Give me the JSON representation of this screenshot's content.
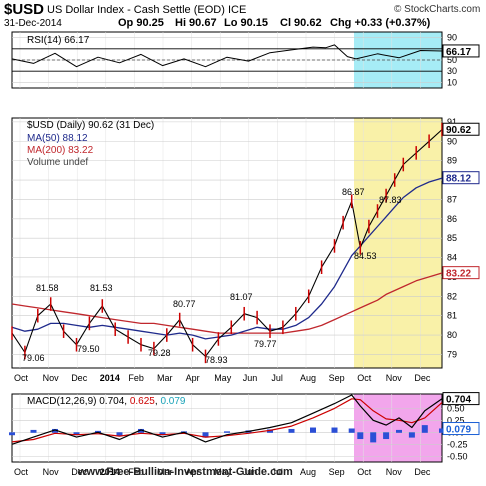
{
  "header": {
    "symbol": "$USD",
    "name": "US Dollar Index - Cash Settle (EOD) ICE",
    "date": "31-Dec-2014",
    "open": "Op 90.25",
    "high": "Hi 90.67",
    "low": "Lo 90.15",
    "close": "Cl 90.62",
    "change": "Chg +0.33 (+0.37%)",
    "watermark": "© StockCharts.com",
    "footer": "www.Free-Bullion-Investment-Guide.com"
  },
  "colors": {
    "price": "#000000",
    "ma50": "#1f2a8c",
    "ma200": "#c0272d",
    "macd": "#000000",
    "signal": "#cc0000",
    "hist": "#2b4fd6",
    "highlight_price": "#f9f1a8",
    "highlight_rsi": "#a6ecf6",
    "highlight_macd": "#f2a6ec",
    "up": "#cc0000"
  },
  "chart_data": [
    {
      "type": "line",
      "panel": "rsi",
      "legend": "RSI(14) 66.17",
      "ylim": [
        0,
        100
      ],
      "yticks": [
        "90",
        "70",
        "50",
        "30",
        "10"
      ],
      "last_label": "66.17",
      "x": [
        0,
        0.05,
        0.1,
        0.15,
        0.2,
        0.25,
        0.3,
        0.35,
        0.4,
        0.45,
        0.5,
        0.55,
        0.6,
        0.65,
        0.7,
        0.73,
        0.75,
        0.78,
        0.8,
        0.85,
        0.9,
        0.95,
        1
      ],
      "values": [
        52,
        44,
        62,
        38,
        55,
        45,
        60,
        40,
        52,
        38,
        55,
        48,
        63,
        68,
        73,
        72,
        77,
        56,
        52,
        61,
        54,
        67,
        66
      ],
      "reference_lines": [
        70,
        50,
        30
      ]
    },
    {
      "type": "line",
      "panel": "price",
      "title": "$USD (Daily) 90.62 (31 Dec)",
      "legend": [
        "MA(50) 88.12",
        "MA(200) 83.22",
        "Volume undef"
      ],
      "ylim": [
        78.3,
        91.2
      ],
      "yticks": [
        "91",
        "90",
        "89",
        "88",
        "87",
        "86",
        "85",
        "84",
        "83",
        "82",
        "81",
        "80",
        "79"
      ],
      "last_price": "90.62",
      "last_ma50": "88.12",
      "last_ma200": "83.22",
      "xlabels": [
        "Oct",
        "Nov",
        "Dec",
        "2014",
        "Feb",
        "Mar",
        "Apr",
        "May",
        "Jun",
        "Jul",
        "Aug",
        "Sep",
        "Oct",
        "Nov",
        "Dec"
      ],
      "x": [
        0,
        0.03,
        0.06,
        0.09,
        0.12,
        0.15,
        0.18,
        0.21,
        0.24,
        0.27,
        0.3,
        0.33,
        0.36,
        0.39,
        0.42,
        0.45,
        0.48,
        0.51,
        0.54,
        0.57,
        0.6,
        0.63,
        0.66,
        0.69,
        0.72,
        0.75,
        0.77,
        0.79,
        0.81,
        0.83,
        0.85,
        0.87,
        0.89,
        0.91,
        0.94,
        0.97,
        1
      ],
      "series": [
        {
          "name": "$USD",
          "values": [
            80.1,
            79.1,
            81.0,
            81.6,
            80.2,
            79.5,
            80.6,
            81.5,
            80.3,
            79.9,
            79.5,
            79.3,
            80.0,
            80.8,
            79.5,
            78.9,
            79.8,
            80.4,
            81.1,
            80.9,
            80.2,
            80.4,
            81.1,
            82.0,
            83.5,
            84.6,
            85.8,
            86.9,
            84.5,
            85.6,
            86.4,
            87.2,
            88.0,
            88.8,
            89.4,
            90.0,
            90.6
          ]
        },
        {
          "name": "MA(50)",
          "values": [
            80.4,
            80.2,
            80.3,
            80.6,
            80.6,
            80.5,
            80.4,
            80.5,
            80.4,
            80.3,
            80.2,
            80.1,
            80.0,
            80.1,
            80.0,
            79.8,
            79.9,
            80.0,
            80.2,
            80.4,
            80.3,
            80.3,
            80.5,
            80.9,
            81.6,
            82.5,
            83.3,
            84.1,
            84.6,
            85.1,
            85.6,
            86.1,
            86.6,
            87.1,
            87.6,
            87.9,
            88.1
          ]
        },
        {
          "name": "MA(200)",
          "values": [
            81.6,
            81.5,
            81.4,
            81.3,
            81.2,
            81.1,
            81.0,
            80.9,
            80.8,
            80.7,
            80.6,
            80.6,
            80.5,
            80.4,
            80.3,
            80.2,
            80.1,
            80.1,
            80.1,
            80.1,
            80.1,
            80.1,
            80.2,
            80.3,
            80.5,
            80.8,
            81.0,
            81.2,
            81.4,
            81.6,
            81.8,
            82.1,
            82.3,
            82.5,
            82.8,
            83.0,
            83.2
          ]
        }
      ],
      "annotations": [
        "81.58",
        "81.53",
        "80.77",
        "81.07",
        "79.06",
        "79.50",
        "79.28",
        "78.93",
        "79.77",
        "86.87",
        "84.53",
        "87.83"
      ]
    },
    {
      "type": "line",
      "panel": "macd",
      "legend": [
        "MACD(12,26,9)",
        "0.704",
        "0.625",
        "0.079"
      ],
      "ylim": [
        -0.62,
        0.8
      ],
      "yticks": [
        "0.50",
        "0.25",
        "0.00",
        "-0.25",
        "-0.50"
      ],
      "last_macd": "0.704",
      "last_signal": "0.625",
      "last_hist": "0.079",
      "xlabels": [
        "Oct",
        "Nov",
        "Dec",
        "2014",
        "Feb",
        "Mar",
        "Apr",
        "May",
        "Jun",
        "Jul",
        "Aug",
        "Sep",
        "Oct",
        "Nov",
        "Dec"
      ],
      "x": [
        0,
        0.05,
        0.1,
        0.15,
        0.2,
        0.25,
        0.3,
        0.35,
        0.4,
        0.45,
        0.5,
        0.55,
        0.6,
        0.65,
        0.7,
        0.75,
        0.79,
        0.81,
        0.84,
        0.87,
        0.9,
        0.93,
        0.96,
        1
      ],
      "series": [
        {
          "name": "MACD",
          "values": [
            -0.25,
            -0.1,
            0.05,
            -0.1,
            0.0,
            -0.15,
            0.05,
            -0.1,
            0.0,
            -0.2,
            -0.05,
            0.02,
            0.1,
            0.2,
            0.4,
            0.6,
            0.78,
            0.55,
            0.25,
            0.15,
            0.3,
            0.1,
            0.45,
            0.7
          ]
        },
        {
          "name": "Signal",
          "values": [
            -0.2,
            -0.15,
            -0.02,
            -0.05,
            -0.03,
            -0.08,
            -0.02,
            -0.05,
            -0.02,
            -0.1,
            -0.07,
            -0.02,
            0.04,
            0.13,
            0.3,
            0.5,
            0.7,
            0.68,
            0.45,
            0.28,
            0.25,
            0.2,
            0.3,
            0.62
          ]
        },
        {
          "name": "Histogram",
          "values": [
            -0.05,
            0.05,
            0.07,
            -0.05,
            0.03,
            -0.07,
            0.07,
            -0.05,
            0.02,
            -0.1,
            0.02,
            0.04,
            0.06,
            0.07,
            0.1,
            0.1,
            0.08,
            -0.13,
            -0.2,
            -0.13,
            0.05,
            -0.1,
            0.15,
            0.08
          ]
        }
      ]
    }
  ]
}
